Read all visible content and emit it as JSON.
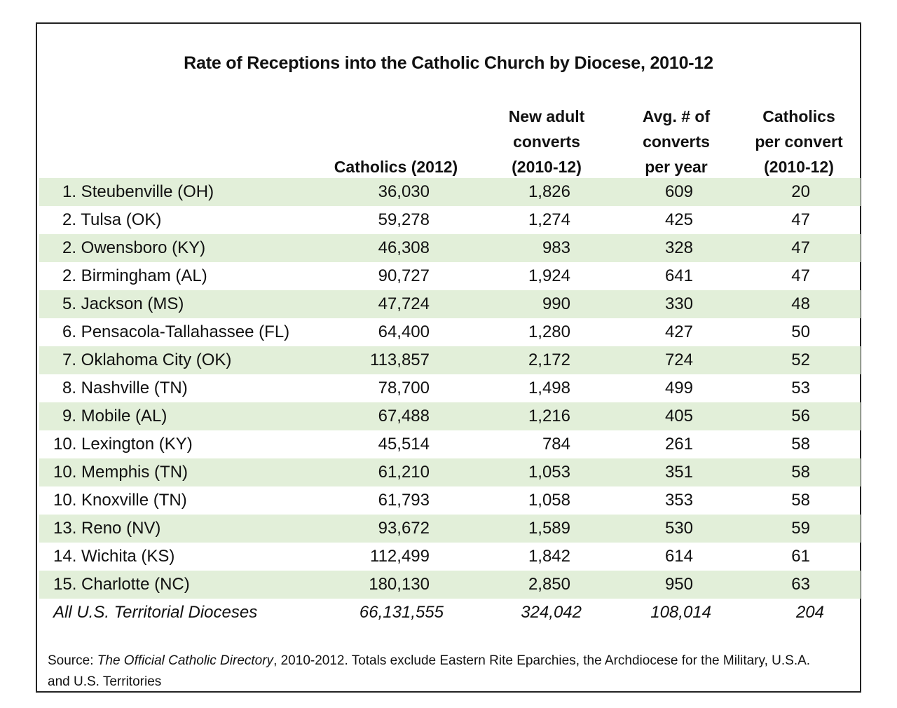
{
  "title": "Rate of Receptions into the Catholic Church by Diocese, 2010-12",
  "headers": {
    "catholics": [
      "Catholics (2012)"
    ],
    "converts": [
      "New adult",
      "converts",
      "(2010-12)"
    ],
    "avg": [
      "Avg. # of",
      "converts",
      "per year"
    ],
    "per_convert": [
      "Catholics",
      "per convert",
      "(2010-12)"
    ]
  },
  "rows": [
    {
      "name": "1. Steubenville (OH)",
      "catholics": "36,030",
      "converts": "1,826",
      "avg": "609",
      "per": "20"
    },
    {
      "name": "2. Tulsa (OK)",
      "catholics": "59,278",
      "converts": "1,274",
      "avg": "425",
      "per": "47"
    },
    {
      "name": "2. Owensboro (KY)",
      "catholics": "46,308",
      "converts": "983",
      "avg": "328",
      "per": "47"
    },
    {
      "name": "2. Birmingham (AL)",
      "catholics": "90,727",
      "converts": "1,924",
      "avg": "641",
      "per": "47"
    },
    {
      "name": "5. Jackson (MS)",
      "catholics": "47,724",
      "converts": "990",
      "avg": "330",
      "per": "48"
    },
    {
      "name": "6. Pensacola-Tallahassee (FL)",
      "catholics": "64,400",
      "converts": "1,280",
      "avg": "427",
      "per": "50"
    },
    {
      "name": "7. Oklahoma City (OK)",
      "catholics": "113,857",
      "converts": "2,172",
      "avg": "724",
      "per": "52"
    },
    {
      "name": "8. Nashville (TN)",
      "catholics": "78,700",
      "converts": "1,498",
      "avg": "499",
      "per": "53"
    },
    {
      "name": "9. Mobile (AL)",
      "catholics": "67,488",
      "converts": "1,216",
      "avg": "405",
      "per": "56"
    },
    {
      "name": "10. Lexington (KY)",
      "catholics": "45,514",
      "converts": "784",
      "avg": "261",
      "per": "58"
    },
    {
      "name": "10. Memphis (TN)",
      "catholics": "61,210",
      "converts": "1,053",
      "avg": "351",
      "per": "58"
    },
    {
      "name": "10. Knoxville (TN)",
      "catholics": "61,793",
      "converts": "1,058",
      "avg": "353",
      "per": "58"
    },
    {
      "name": "13. Reno (NV)",
      "catholics": "93,672",
      "converts": "1,589",
      "avg": "530",
      "per": "59"
    },
    {
      "name": "14. Wichita (KS)",
      "catholics": "112,499",
      "converts": "1,842",
      "avg": "614",
      "per": "61"
    },
    {
      "name": "15. Charlotte (NC)",
      "catholics": "180,130",
      "converts": "2,850",
      "avg": "950",
      "per": "63"
    }
  ],
  "total": {
    "name": "All U.S. Territorial Dioceses",
    "catholics": "66,131,555",
    "converts": "324,042",
    "avg": "108,014",
    "per": "204"
  },
  "source": {
    "prefix": "Source: ",
    "publication": "The Official Catholic Directory",
    "rest": ", 2010-2012. Totals exclude Eastern Rite Eparchies, the Archdiocese for the Military, U.S.A. and U.S. Territories"
  },
  "colors": {
    "stripe": "#e2efd9",
    "border": "#222222"
  }
}
